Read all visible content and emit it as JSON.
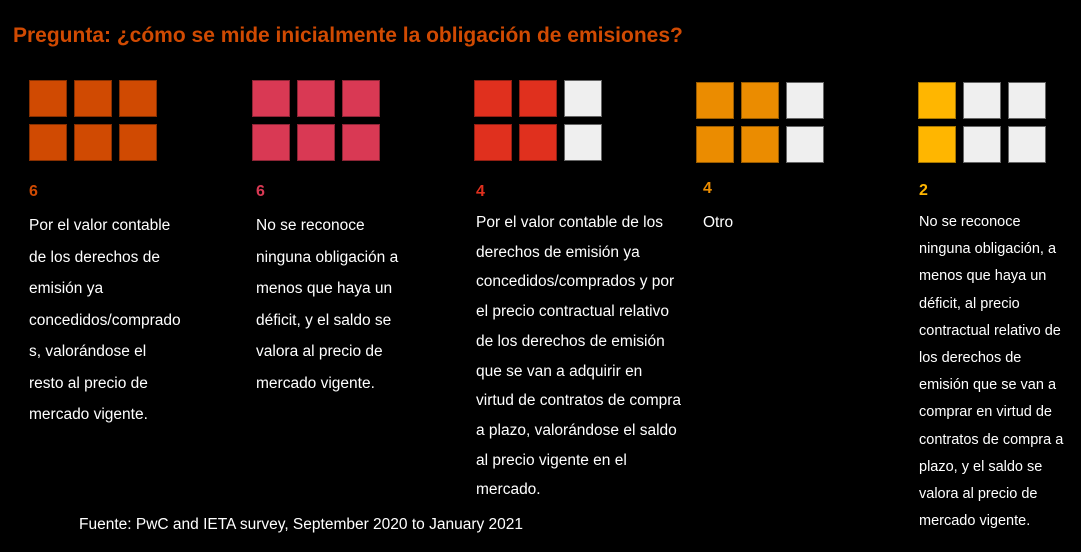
{
  "title": "Pregunta: ¿cómo se mide inicialmente la obligación de emisiones?",
  "chart_data": {
    "type": "waffle",
    "total_per_group": 6,
    "empty_color": "#efefef",
    "groups": [
      {
        "value": 6,
        "color": "#d04a02",
        "label": "Por el valor contable\nde los derechos de\nemisión ya\nconcedidos/comprado\ns, valorándose el\nresto al precio de\nmercado vigente."
      },
      {
        "value": 6,
        "color": "#d93954",
        "label": "No se reconoce\nninguna obligación a\nmenos que haya un\ndéficit, y el saldo se\nvalora al precio de\nmercado vigente."
      },
      {
        "value": 4,
        "color": "#e0301e",
        "label": "Por el valor contable de los\nderechos de emisión ya\nconcedidos/comprados y por\nel precio contractual relativo\nde los derechos de emisión\nque se van a adquirir en\nvirtud de contratos de compra\na plazo, valorándose el saldo\nal precio vigente en el\nmercado."
      },
      {
        "value": 4,
        "color": "#eb8c00",
        "label": "Otro"
      },
      {
        "value": 2,
        "color": "#ffb600",
        "label": "No se reconoce\nninguna obligación, a\nmenos que haya un\ndéficit, al precio\ncontractual relativo de\nlos derechos de\nemisión que se van a\ncomprar en virtud de\ncontratos de compra a\nplazo, y el saldo se\nvalora al precio de\nmercado vigente."
      }
    ]
  },
  "source": "Fuente: PwC and IETA survey, September 2020 to January 2021"
}
